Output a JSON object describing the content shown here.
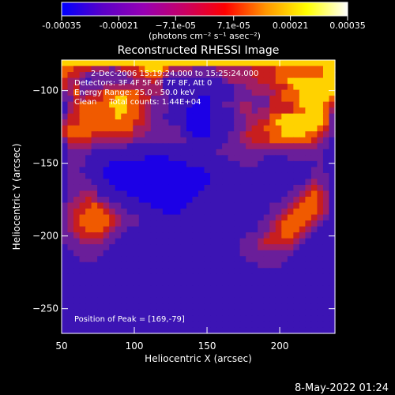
{
  "colorbar": {
    "ticks": [
      "-0.00035",
      "-0.00021",
      "−7.1e-05",
      "7.1e-05",
      "0.00021",
      "0.00035"
    ],
    "tick_values": [
      -0.00035,
      -0.00021,
      -7.1e-05,
      7.1e-05,
      0.00021,
      0.00035
    ],
    "range": [
      -0.00035,
      0.00035
    ],
    "unit_label": "(photons cm⁻² s⁻¹ asec⁻²)",
    "colors": [
      "#0000ff",
      "#5a00c8",
      "#9600b4",
      "#c80064",
      "#ff0000",
      "#ff9600",
      "#ffff00",
      "#ffffff"
    ]
  },
  "annotations": {
    "line1": "2-Dec-2006 15:19:24.000 to 15:25:24.000",
    "line2": "Detectors: 3F 4F 5F 6F 7F 8F, Att 0",
    "line3": "Energy Range: 25.0 - 50.0 keV",
    "line4": "Clean     Total counts: 1.44E+04",
    "peak": "Position of Peak = [169,-79]"
  },
  "footer": {
    "date": "8-May-2022 01:24"
  },
  "chart_data": {
    "type": "heatmap",
    "title": "Reconstructed RHESSI Image",
    "xlabel": "Heliocentric X (arcsec)",
    "ylabel": "Heliocentric Y (arcsec)",
    "xlim": [
      50,
      238
    ],
    "ylim": [
      -267,
      -79
    ],
    "x_ticks": [
      "50",
      "100",
      "150",
      "200"
    ],
    "x_tick_values": [
      50,
      100,
      150,
      200
    ],
    "y_ticks": [
      "-100",
      "-150",
      "-200",
      "-250"
    ],
    "y_tick_values": [
      -100,
      -150,
      -200,
      -250
    ],
    "grid": false,
    "peak_position": [
      169,
      -79
    ],
    "intensity_grid_rows_top_to_bottom": [
      "7777777777777777777777777777777777777777777777",
      "6655544434555677764444333344444455556666666677",
      "6554333333345566643333333334444455556666666677",
      "5443233333334445422222222223444445556677777777",
      "5453333444444444422222222222233444455567777777",
      "3463445666666544432222222222233344445666777777",
      "3354555667766553332222211222233333355666777776",
      "2456666677766543332222111223334433355556777765",
      "2456666667766543332221111222234434455556677764",
      "3556666667666543322221111222233444466777777763",
      "4556666666665543332221111222233445567777777763",
      "5666666666664443333321111222233455666777777653",
      "5666655555554433333322111222334555566777766543",
      "3555544444443333333332222222334455566666665432",
      "2444433333322222222222222223333444444444444332",
      "2333322222222222222222222233333333333333333322",
      "2333222222222211112222222222333333222233333322",
      "2333222211111111111112222222223332222222222322",
      "2332222111111111111111112222222222222222223322",
      "2333222111111111111111111222222222222222223332",
      "2333322211111111111111111222222222222222234332",
      "2333332221111111111111112222222222222223345432",
      "2334442222211111111111122222222222222233456542",
      "2344543322222111111111222222222222222334566542",
      "3445565433222221111112222222222222233345666542",
      "3455666543322222211122222222222222233456666542",
      "3456666654333222222222222222222222334566665432",
      "3456666654333222222222222222222223345666654322",
      "3455666543322222222222222222222223345666543222",
      "3345555433222222222222222222222333455665432222",
      "3334444332222222222222222222223334555554322222",
      "2333333322222222222222222222223334444443222222",
      "2233333222222222222222222222223333333332222222",
      "2223332222222222222222222222222333333322222222",
      "2222222222222222222222222222222223333222222222",
      "2222222222222222222222222222222222222222222222",
      "2222222222222222222222222222222222222222222222",
      "2222222222222222222222222222222222222222222222",
      "2222222222222222222222222222222222222222222222",
      "2222222222222222222222222222222222222222222222",
      "2222222222222222222222222222222222222222222222",
      "2222222222222222222222222222222222222222222222",
      "2222222222222222222222222222222222222222222222",
      "2222222222222222222222222222222222222222222222",
      "2222222222222222222222222222222222222222222222",
      "2222222222222222222222222222222222222222222222"
    ],
    "intensity_levels": {
      "1": "#1c00e6",
      "2": "#3c14b4",
      "3": "#6a1e9a",
      "4": "#a01e64",
      "5": "#c81e1e",
      "6": "#f05a00",
      "7": "#ffd200"
    }
  }
}
